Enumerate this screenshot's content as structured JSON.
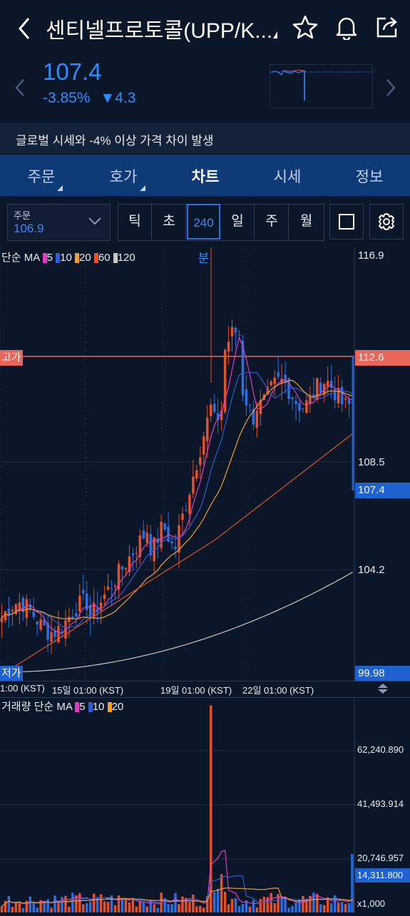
{
  "header": {
    "title": "센티넬프로토콜(UPP/K...",
    "icons": [
      "back-arrow-icon",
      "star-icon",
      "bell-icon",
      "share-icon"
    ]
  },
  "price": {
    "value": "107.4",
    "change_pct": "-3.85%",
    "change_arrow": "▼",
    "change_abs": "4.3"
  },
  "notice": "글로벌 시세와 -4% 이상 가격 차이 발생",
  "tabs": [
    {
      "label": "주문",
      "has_caret": true
    },
    {
      "label": "호가",
      "has_caret": true
    },
    {
      "label": "차트",
      "active": true
    },
    {
      "label": "시세"
    },
    {
      "label": "정보"
    }
  ],
  "order_box": {
    "label": "주문",
    "value": "106.9"
  },
  "periods": [
    "틱",
    "초",
    "240분",
    "일",
    "주",
    "월"
  ],
  "selected_period": "240분",
  "price_chart": {
    "legend_prefix": "단순 MA",
    "ma_legend": [
      {
        "label": "5",
        "color": "#e03cc4"
      },
      {
        "label": "10",
        "color": "#2f5bd6"
      },
      {
        "label": "20",
        "color": "#f0a030"
      },
      {
        "label": "60",
        "color": "#e8502a"
      },
      {
        "label": "120",
        "color": "#c8c8c8"
      }
    ],
    "y_labels": [
      "116.9",
      "112.6",
      "108.5",
      "107.4",
      "104.2",
      "99.98"
    ],
    "high_tag": "고가",
    "low_tag": "저가",
    "x_labels": [
      "1:00 (KST)",
      "15일 01:00 (KST)",
      "19일 01:00 (KST)",
      "22일 01:00 (KST)"
    ],
    "colors": {
      "up": "#e8502a",
      "down": "#2d6fe0",
      "high_line": "#e8502a",
      "current": "#1e62d0"
    }
  },
  "volume_chart": {
    "legend_prefix": "거래량 단순 MA",
    "ma_legend": [
      {
        "label": "5",
        "color": "#e03cc4"
      },
      {
        "label": "10",
        "color": "#2f5bd6"
      },
      {
        "label": "20",
        "color": "#f0a030"
      }
    ],
    "y_labels": [
      "62,240.890",
      "41,493.914",
      "20,746.957",
      "14,311.800",
      "x1,000"
    ]
  }
}
